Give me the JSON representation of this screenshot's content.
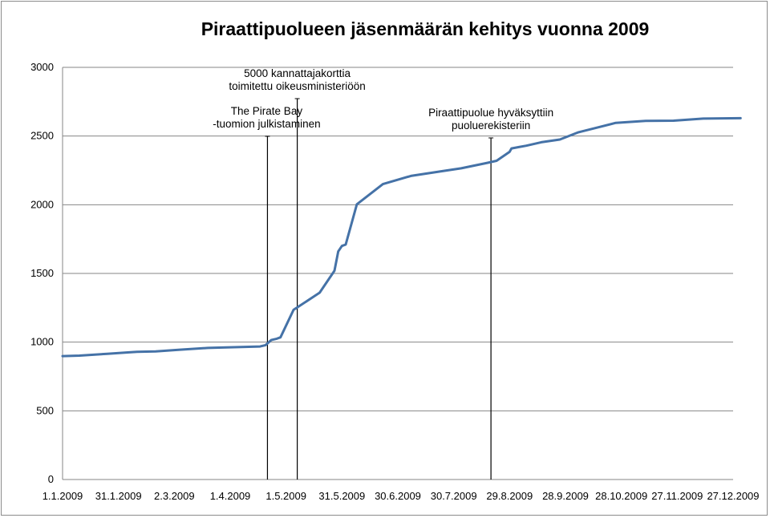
{
  "chart_data": {
    "type": "line",
    "title": "Piraattipuolueen jäsenmäärän kehitys vuonna 2009",
    "xlabel": "",
    "ylabel": "",
    "ylim": [
      0,
      3000
    ],
    "yticks": [
      0,
      500,
      1000,
      1500,
      2000,
      2500,
      3000
    ],
    "xticks": [
      "1.1.2009",
      "31.1.2009",
      "2.3.2009",
      "1.4.2009",
      "1.5.2009",
      "31.5.2009",
      "30.6.2009",
      "30.7.2009",
      "29.8.2009",
      "28.9.2009",
      "28.10.2009",
      "27.11.2009",
      "27.12.2009"
    ],
    "grid": "horizontal",
    "legend": "none",
    "line_color": "#4572a7",
    "series": [
      {
        "x": [
          "1.1.2009",
          "10.1.2009",
          "25.1.2009",
          "5.2.2009",
          "10.2.2009",
          "20.2.2009",
          "5.3.2009",
          "20.3.2009",
          "30.3.2009",
          "17.4.2009",
          "20.4.2009",
          "23.4.2009",
          "26.4.2009",
          "28.4.2009",
          "5.5.2009",
          "19.5.2009",
          "27.5.2009",
          "29.5.2009",
          "31.5.2009",
          "2.6.2009",
          "8.6.2009",
          "22.6.2009",
          "7.7.2009",
          "24.7.2009",
          "3.8.2009",
          "17.8.2009",
          "22.8.2009",
          "29.8.2009",
          "30.8.2009",
          "3.9.2009",
          "7.9.2009",
          "15.9.2009",
          "25.9.2009",
          "5.10.2009",
          "14.10.2009",
          "25.10.2009",
          "10.11.2009",
          "25.11.2009",
          "11.12.2009",
          "31.12.2009"
        ],
        "values": [
          898,
          902,
          915,
          925,
          930,
          932,
          945,
          958,
          962,
          968,
          978,
          1015,
          1025,
          1035,
          1235,
          1360,
          1520,
          1660,
          1700,
          1710,
          2003,
          2150,
          2210,
          2245,
          2265,
          2305,
          2320,
          2385,
          2410,
          2420,
          2430,
          2455,
          2475,
          2528,
          2558,
          2596,
          2610,
          2612,
          2627,
          2630
        ]
      }
    ],
    "markers": [
      {
        "date": "21.4.2009",
        "label_lines": [
          "The Pirate Bay",
          "-tuomion julkistaminen"
        ]
      },
      {
        "date": "7.5.2009",
        "label_lines": [
          "5000 kannattajakorttia",
          "toimitettu oikeusministeriöön"
        ]
      },
      {
        "date": "19.8.2009",
        "label_lines": [
          "Piraattipuolue hyväksyttiin",
          "puoluerekisteriin"
        ]
      }
    ]
  }
}
